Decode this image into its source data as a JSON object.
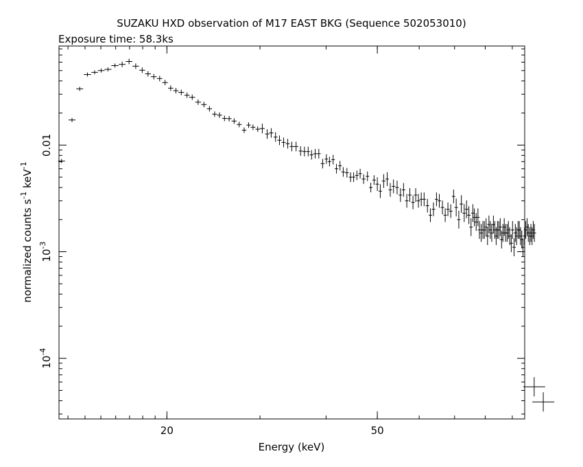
{
  "chart_data": {
    "type": "scatter",
    "title": "SUZAKU HXD observation of M17 EAST BKG (Sequence 502053010)",
    "subtitle": "Exposure time: 58.3ks",
    "xlabel": "Energy (keV)",
    "ylabel": {
      "base": "normalized counts s",
      "sup1": "-1",
      "mid": " keV",
      "sup2": "-1"
    },
    "x_scale": "log",
    "y_scale": "log",
    "xlim": [
      12.5,
      95
    ],
    "ylim": [
      2.7e-05,
      0.085
    ],
    "x_ticks": [
      {
        "value": 20,
        "label": "20"
      },
      {
        "value": 50,
        "label": "50"
      }
    ],
    "y_ticks": [
      {
        "value": 0.01,
        "mantissa": "0.01",
        "exp": ""
      },
      {
        "value": 0.001,
        "mantissa": "10",
        "exp": "-3"
      },
      {
        "value": 0.0001,
        "mantissa": "10",
        "exp": "-4"
      }
    ],
    "series": [
      {
        "points": [
          [
            12.64,
            0.00709
          ],
          [
            13.23,
            0.0172
          ],
          [
            13.68,
            0.0337
          ],
          [
            14.15,
            0.0459
          ],
          [
            14.6,
            0.0481
          ],
          [
            15.02,
            0.05
          ],
          [
            15.47,
            0.0513
          ],
          [
            15.95,
            0.0557
          ],
          [
            16.46,
            0.0572
          ],
          [
            16.96,
            0.0609
          ],
          [
            17.46,
            0.055
          ],
          [
            17.96,
            0.0504
          ],
          [
            18.42,
            0.0466
          ],
          [
            18.89,
            0.0438
          ],
          [
            19.38,
            0.0421
          ],
          [
            19.84,
            0.0386
          ],
          [
            20.33,
            0.0342
          ],
          [
            20.8,
            0.0324
          ],
          [
            21.29,
            0.0312
          ],
          [
            21.83,
            0.0294
          ],
          [
            22.33,
            0.0281
          ],
          [
            22.91,
            0.0253
          ],
          [
            23.5,
            0.024
          ],
          [
            24.07,
            0.0219
          ],
          [
            24.62,
            0.0195
          ],
          [
            25.15,
            0.0191
          ],
          [
            25.7,
            0.0178
          ],
          [
            26.23,
            0.0177
          ],
          [
            26.8,
            0.0168
          ],
          [
            27.4,
            0.0156
          ],
          [
            28.0,
            0.0138
          ],
          [
            28.55,
            0.0154
          ],
          [
            29.1,
            0.0147
          ],
          [
            29.7,
            0.0141
          ],
          [
            30.3,
            0.0143
          ],
          [
            30.95,
            0.0127
          ],
          [
            31.5,
            0.013
          ],
          [
            32.1,
            0.0119
          ],
          [
            32.65,
            0.0111
          ],
          [
            33.25,
            0.0106
          ],
          [
            33.85,
            0.0103
          ],
          [
            34.45,
            0.0097
          ],
          [
            35.1,
            0.0097
          ],
          [
            35.8,
            0.0088
          ],
          [
            36.4,
            0.0087
          ],
          [
            37.0,
            0.0087
          ],
          [
            37.55,
            0.0081
          ],
          [
            38.15,
            0.0083
          ],
          [
            38.75,
            0.0083
          ],
          [
            39.4,
            0.0067
          ],
          [
            40.05,
            0.0074
          ],
          [
            40.6,
            0.007
          ],
          [
            41.25,
            0.0073
          ],
          [
            41.85,
            0.006
          ],
          [
            42.5,
            0.0064
          ],
          [
            43.1,
            0.0056
          ],
          [
            43.8,
            0.0055
          ],
          [
            44.5,
            0.005
          ],
          [
            45.1,
            0.005
          ],
          [
            45.75,
            0.0052
          ],
          [
            46.4,
            0.0054
          ],
          [
            47.1,
            0.0048
          ],
          [
            47.9,
            0.0051
          ],
          [
            48.6,
            0.004
          ],
          [
            49.3,
            0.0047
          ],
          [
            50.0,
            0.0043
          ],
          [
            50.65,
            0.0037
          ],
          [
            51.4,
            0.0046
          ],
          [
            52.2,
            0.0048
          ],
          [
            52.9,
            0.0038
          ],
          [
            53.65,
            0.0041
          ],
          [
            54.5,
            0.004
          ],
          [
            55.3,
            0.0034
          ],
          [
            56.05,
            0.0038
          ],
          [
            56.85,
            0.003
          ],
          [
            57.6,
            0.0034
          ],
          [
            58.4,
            0.0029
          ],
          [
            59.1,
            0.0034
          ],
          [
            59.8,
            0.003
          ],
          [
            60.55,
            0.0031
          ],
          [
            61.3,
            0.0031
          ],
          [
            62.2,
            0.0027
          ],
          [
            63.0,
            0.0022
          ],
          [
            63.85,
            0.0025
          ],
          [
            64.7,
            0.0031
          ],
          [
            65.5,
            0.003
          ],
          [
            66.4,
            0.0026
          ],
          [
            67.2,
            0.0022
          ],
          [
            68.0,
            0.0025
          ],
          [
            68.85,
            0.0024
          ],
          [
            69.7,
            0.0033
          ],
          [
            70.5,
            0.0026
          ],
          [
            71.3,
            0.002
          ],
          [
            72.1,
            0.0028
          ],
          [
            73.0,
            0.0023
          ],
          [
            73.75,
            0.0025
          ],
          [
            74.5,
            0.0022
          ],
          [
            75.2,
            0.0017
          ],
          [
            75.8,
            0.0023
          ],
          [
            76.3,
            0.0021
          ],
          [
            76.9,
            0.0019
          ],
          [
            77.5,
            0.0021
          ],
          [
            78.0,
            0.0016
          ],
          [
            78.6,
            0.0015
          ],
          [
            79.2,
            0.0016
          ],
          [
            79.7,
            0.0016
          ],
          [
            80.3,
            0.0017
          ],
          [
            80.8,
            0.0014
          ],
          [
            81.3,
            0.0018
          ],
          [
            81.8,
            0.0016
          ],
          [
            82.3,
            0.0015
          ],
          [
            82.9,
            0.0018
          ],
          [
            83.4,
            0.0016
          ],
          [
            83.9,
            0.0014
          ],
          [
            84.4,
            0.0016
          ],
          [
            84.9,
            0.0016
          ],
          [
            85.4,
            0.0017
          ],
          [
            85.9,
            0.0013
          ],
          [
            86.4,
            0.0015
          ],
          [
            86.9,
            0.0017
          ],
          [
            87.4,
            0.0015
          ],
          [
            88.0,
            0.0015
          ],
          [
            88.5,
            0.0016
          ],
          [
            89.0,
            0.0014
          ],
          [
            89.6,
            0.0012
          ],
          [
            90.1,
            0.0016
          ],
          [
            90.7,
            0.0011
          ],
          [
            91.2,
            0.0015
          ],
          [
            91.7,
            0.0014
          ],
          [
            92.3,
            0.0016
          ],
          [
            92.8,
            0.0016
          ],
          [
            93.3,
            0.0014
          ],
          [
            93.8,
            0.0013
          ],
          [
            94.3,
            0.0011
          ],
          [
            94.9,
            0.0014
          ],
          [
            95.4,
            0.0016
          ],
          [
            96.0,
            0.0017
          ],
          [
            96.5,
            0.0015
          ],
          [
            97.1,
            0.0014
          ],
          [
            97.6,
            0.0015
          ],
          [
            98.1,
            0.0014
          ],
          [
            98.6,
            0.0016
          ],
          [
            99.1,
            0.0015
          ]
        ]
      },
      {
        "points": [
          [
            99.0,
            5.4e-05
          ],
          [
            103.0,
            3.9e-05
          ]
        ]
      }
    ]
  }
}
